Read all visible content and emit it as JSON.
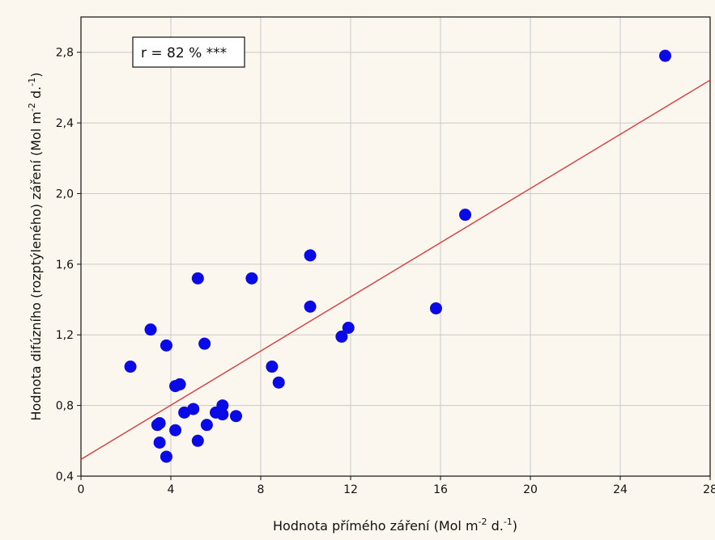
{
  "chart_data": {
    "type": "scatter",
    "xlabel": {
      "main": "Hodnota přímého záření (Mol m",
      "sup1": "-2",
      "mid": " d.",
      "sup2": "-1",
      "end": ")"
    },
    "ylabel": {
      "main": "Hodnota difúzního (rozptýleného) záření (Mol m",
      "sup1": "-2",
      "mid": " d.",
      "sup2": "-1",
      "end": ")"
    },
    "xlim": [
      0,
      28
    ],
    "ylim": [
      0.4,
      3.0
    ],
    "x_ticks": [
      0,
      4,
      8,
      12,
      16,
      20,
      24,
      28
    ],
    "x_tick_labels": [
      "0",
      "4",
      "8",
      "12",
      "16",
      "20",
      "24",
      "28"
    ],
    "y_ticks": [
      0.4,
      0.8,
      1.2,
      1.6,
      2.0,
      2.4,
      2.8
    ],
    "y_tick_labels": [
      "0,4",
      "0,8",
      "1,2",
      "1,6",
      "2,0",
      "2,4",
      "2,8"
    ],
    "grid": true,
    "annotation": "r = 82 % ***",
    "point_color": "#0a0ae6",
    "line_color": "#d93a3a",
    "regression": {
      "intercept": 0.495,
      "slope": 0.0767
    },
    "points": [
      {
        "x": 2.2,
        "y": 1.02
      },
      {
        "x": 3.1,
        "y": 1.23
      },
      {
        "x": 3.4,
        "y": 0.69
      },
      {
        "x": 3.5,
        "y": 0.7
      },
      {
        "x": 3.5,
        "y": 0.59
      },
      {
        "x": 3.8,
        "y": 1.14
      },
      {
        "x": 3.8,
        "y": 0.51
      },
      {
        "x": 4.2,
        "y": 0.91
      },
      {
        "x": 4.2,
        "y": 0.66
      },
      {
        "x": 4.4,
        "y": 0.92
      },
      {
        "x": 4.6,
        "y": 0.76
      },
      {
        "x": 5.0,
        "y": 0.78
      },
      {
        "x": 5.2,
        "y": 0.6
      },
      {
        "x": 5.2,
        "y": 1.52
      },
      {
        "x": 5.5,
        "y": 1.15
      },
      {
        "x": 5.6,
        "y": 0.69
      },
      {
        "x": 6.0,
        "y": 0.76
      },
      {
        "x": 6.3,
        "y": 0.75
      },
      {
        "x": 6.3,
        "y": 0.8
      },
      {
        "x": 6.9,
        "y": 0.74
      },
      {
        "x": 7.6,
        "y": 1.52
      },
      {
        "x": 8.5,
        "y": 1.02
      },
      {
        "x": 8.8,
        "y": 0.93
      },
      {
        "x": 10.2,
        "y": 1.65
      },
      {
        "x": 10.2,
        "y": 1.36
      },
      {
        "x": 11.6,
        "y": 1.19
      },
      {
        "x": 11.9,
        "y": 1.24
      },
      {
        "x": 15.8,
        "y": 1.35
      },
      {
        "x": 17.1,
        "y": 1.88
      },
      {
        "x": 26.0,
        "y": 2.78
      }
    ]
  }
}
